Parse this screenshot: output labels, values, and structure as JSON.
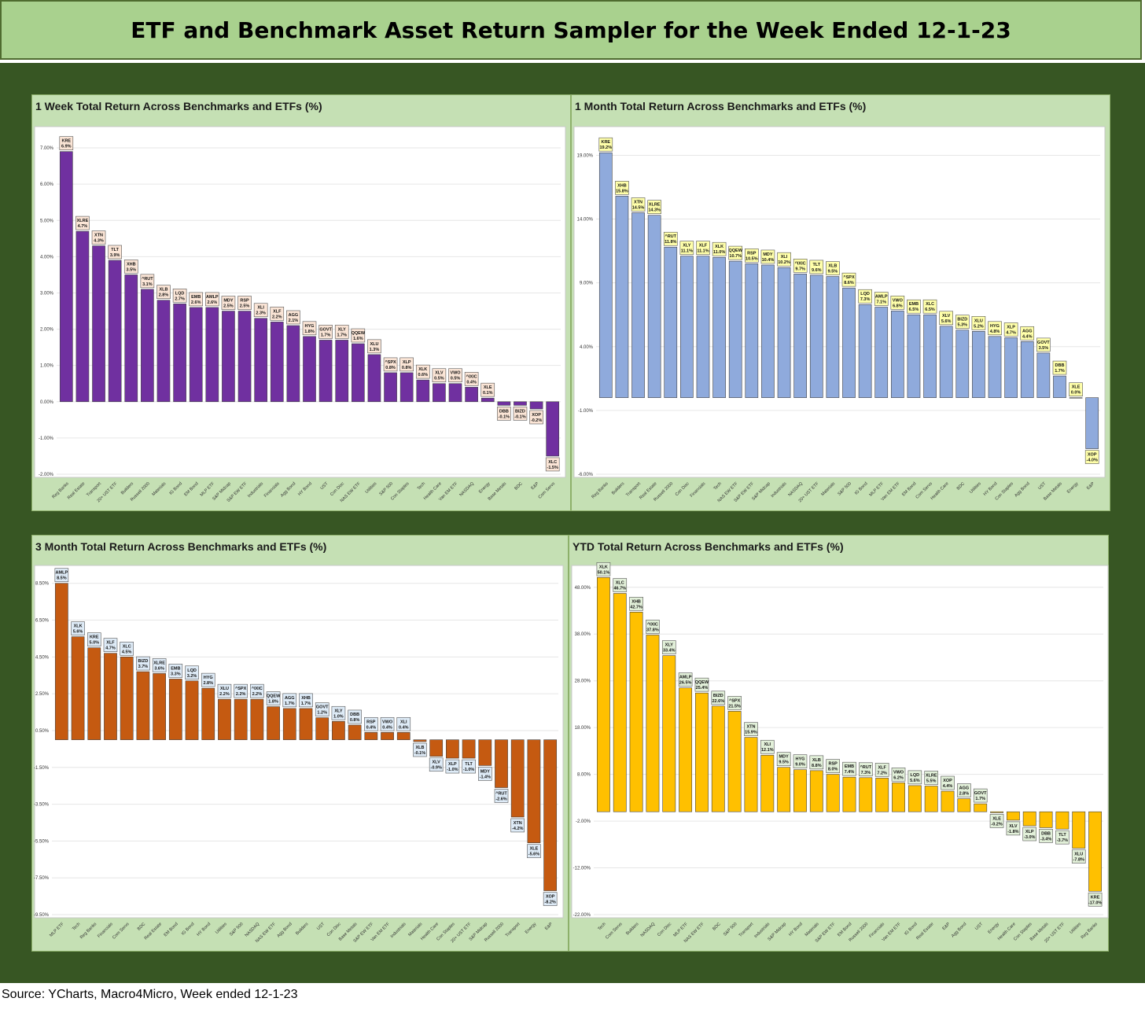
{
  "header": {
    "title": "ETF and Benchmark Asset Return Sampler for the Week Ended 12-1-23"
  },
  "source": "Source: YCharts, Macro4Micro, Week ended 12-1-23",
  "chart_data": [
    {
      "type": "bar",
      "title": "1 Week Total Return Across Benchmarks and ETFs (%)",
      "bar_color": "#7030a0",
      "label_bg": "#fbe5d6",
      "ylim": [
        -2,
        7.5
      ],
      "yticks": [
        -2,
        -1,
        0,
        1,
        2,
        3,
        4,
        5,
        6,
        7
      ],
      "ytick_labels": [
        "-2.00%",
        "-1.00%",
        "0.00%",
        "1.00%",
        "2.00%",
        "3.00%",
        "4.00%",
        "5.00%",
        "6.00%",
        "7.00%"
      ],
      "categories": [
        "Reg Banks",
        "Real Estate",
        "Transport",
        "20+ UST ETF",
        "Builders",
        "Russell 2000",
        "Materials",
        "IG Bond",
        "EM Bond",
        "MLP ETF",
        "S&P Midcap",
        "S&P EW ETF",
        "Industrials",
        "Financials",
        "Agg Bond",
        "HY Bond",
        "UST",
        "Con Disc",
        "NAS EW ETF",
        "Utilities",
        "S&P 500",
        "Con Staples",
        "Tech",
        "Health Care",
        "Van EM ETF",
        "NASDAQ",
        "Energy",
        "Base Metals",
        "BDC",
        "E&P",
        "Com Servs"
      ],
      "tickers": [
        "KRE",
        "XLRE",
        "XTN",
        "TLT",
        "XHB",
        "^RUT",
        "XLB",
        "LQD",
        "EMB",
        "AMLP",
        "MDY",
        "RSP",
        "XLI",
        "XLF",
        "AGG",
        "HYG",
        "GOVT",
        "XLY",
        "QQEW",
        "XLU",
        "^SPX",
        "XLP",
        "XLK",
        "XLV",
        "VWO",
        "^IXIC",
        "XLE",
        "DBB",
        "BIZD",
        "XOP",
        "XLC"
      ],
      "values": [
        6.9,
        4.7,
        4.3,
        3.9,
        3.5,
        3.1,
        2.8,
        2.7,
        2.6,
        2.6,
        2.5,
        2.5,
        2.3,
        2.2,
        2.1,
        1.8,
        1.7,
        1.7,
        1.6,
        1.3,
        0.8,
        0.8,
        0.6,
        0.5,
        0.5,
        0.4,
        0.1,
        -0.1,
        -0.1,
        -0.2,
        -1.5
      ],
      "value_labels": [
        "6.9%",
        "4.7%",
        "4.3%",
        "3.9%",
        "3.5%",
        "3.1%",
        "2.8%",
        "2.7%",
        "2.6%",
        "2.6%",
        "2.5%",
        "2.5%",
        "2.3%",
        "2.2%",
        "2.1%",
        "1.8%",
        "1.7%",
        "1.7%",
        "1.6%",
        "1.3%",
        "0.8%",
        "0.8%",
        "0.6%",
        "0.5%",
        "0.5%",
        "0.4%",
        "0.1%",
        "-0.1%",
        "-0.1%",
        "-0.2%",
        "-1.5%"
      ]
    },
    {
      "type": "bar",
      "title": "1 Month Total Return Across Benchmarks and ETFs (%)",
      "bar_color": "#8faadc",
      "label_bg": "#ffffaa",
      "ylim": [
        -6,
        21
      ],
      "yticks": [
        -6,
        -1,
        4,
        9,
        14,
        19
      ],
      "ytick_labels": [
        "-6.00%",
        "-1.00%",
        "4.00%",
        "9.00%",
        "14.00%",
        "19.00%"
      ],
      "categories": [
        "Reg Banks",
        "Builders",
        "Transport",
        "Real Estate",
        "Russell 2000",
        "Con Disc",
        "Financials",
        "Tech",
        "NAS EW ETF",
        "S&P EW ETF",
        "S&P Midcap",
        "Industrials",
        "NASDAQ",
        "20+ UST ETF",
        "Materials",
        "S&P 500",
        "IG Bond",
        "MLP ETF",
        "Van EM ETF",
        "EM Bond",
        "Com Servs",
        "Health Care",
        "BDC",
        "Utilities",
        "HY Bond",
        "Con Staples",
        "Agg Bond",
        "UST",
        "Base Metals",
        "Energy",
        "E&P"
      ],
      "tickers": [
        "KRE",
        "XHB",
        "XTN",
        "XLRE",
        "^RUT",
        "XLY",
        "XLF",
        "XLK",
        "QQEW",
        "RSP",
        "MDY",
        "XLI",
        "^IXIC",
        "TLT",
        "XLB",
        "^SPX",
        "LQD",
        "AMLP",
        "VWO",
        "EMB",
        "XLC",
        "XLV",
        "BIZD",
        "XLU",
        "HYG",
        "XLP",
        "AGG",
        "GOVT",
        "DBB",
        "XLE",
        "XOP"
      ],
      "values": [
        19.2,
        15.8,
        14.5,
        14.3,
        11.8,
        11.1,
        11.1,
        11.0,
        10.7,
        10.5,
        10.4,
        10.2,
        9.7,
        9.6,
        9.5,
        8.6,
        7.3,
        7.1,
        6.8,
        6.5,
        6.5,
        5.6,
        5.3,
        5.2,
        4.8,
        4.7,
        4.4,
        3.5,
        1.7,
        0.0,
        -4.0
      ],
      "value_labels": [
        "19.2%",
        "15.8%",
        "14.5%",
        "14.3%",
        "11.8%",
        "11.1%",
        "11.1%",
        "11.0%",
        "10.7%",
        "10.5%",
        "10.4%",
        "10.2%",
        "9.7%",
        "9.6%",
        "9.5%",
        "8.6%",
        "7.3%",
        "7.1%",
        "6.8%",
        "6.5%",
        "6.5%",
        "5.6%",
        "5.3%",
        "5.2%",
        "4.8%",
        "4.7%",
        "4.4%",
        "3.5%",
        "1.7%",
        "0.0%",
        "-4.0%"
      ]
    },
    {
      "type": "bar",
      "title": "3 Month Total Return Across Benchmarks and ETFs (%)",
      "bar_color": "#c55a11",
      "label_bg": "#deebf7",
      "ylim": [
        -9.5,
        9.3
      ],
      "yticks": [
        -9.5,
        -7.5,
        -5.5,
        -3.5,
        -1.5,
        0.5,
        2.5,
        4.5,
        6.5,
        8.5
      ],
      "ytick_labels": [
        "-9.50%",
        "-7.50%",
        "-5.50%",
        "-3.50%",
        "-1.50%",
        "0.50%",
        "2.50%",
        "4.50%",
        "6.50%",
        "8.50%"
      ],
      "categories": [
        "MLP ETF",
        "Tech",
        "Reg Banks",
        "Financials",
        "Com Servs",
        "BDC",
        "Real Estate",
        "EM Bond",
        "IG Bond",
        "HY Bond",
        "Utilities",
        "S&P 500",
        "NASDAQ",
        "NAS EW ETF",
        "Agg Bond",
        "Builders",
        "UST",
        "Con Disc",
        "Base Metals",
        "S&P EW ETF",
        "Van EM ETF",
        "Industrials",
        "Materials",
        "Health Care",
        "Con Staples",
        "20+ UST ETF",
        "S&P Midcap",
        "Russell 2000",
        "Transport",
        "Energy",
        "E&P"
      ],
      "tickers": [
        "AMLP",
        "XLK",
        "KRE",
        "XLF",
        "XLC",
        "BIZD",
        "XLRE",
        "EMB",
        "LQD",
        "HYG",
        "XLU",
        "^SPX",
        "^IXIC",
        "QQEW",
        "AGG",
        "XHB",
        "GOVT",
        "XLY",
        "DBB",
        "RSP",
        "VWO",
        "XLI",
        "XLB",
        "XLV",
        "XLP",
        "TLT",
        "MDY",
        "^RUT",
        "XTN",
        "XLE",
        "XOP"
      ],
      "values": [
        8.5,
        5.6,
        5.0,
        4.7,
        4.5,
        3.7,
        3.6,
        3.3,
        3.2,
        2.8,
        2.2,
        2.2,
        2.2,
        1.8,
        1.7,
        1.7,
        1.2,
        1.0,
        0.8,
        0.4,
        0.4,
        0.4,
        -0.1,
        -0.9,
        -1.0,
        -1.0,
        -1.4,
        -2.6,
        -4.2,
        -5.6,
        -8.2
      ],
      "value_labels": [
        "8.5%",
        "5.6%",
        "5.0%",
        "4.7%",
        "4.5%",
        "3.7%",
        "3.6%",
        "3.3%",
        "3.2%",
        "2.8%",
        "2.2%",
        "2.2%",
        "2.2%",
        "1.8%",
        "1.7%",
        "1.7%",
        "1.2%",
        "1.0%",
        "0.8%",
        "0.4%",
        "0.4%",
        "0.4%",
        "-0.1%",
        "-0.9%",
        "-1.0%",
        "-1.0%",
        "-1.4%",
        "-2.6%",
        "-4.2%",
        "-5.6%",
        "-8.2%"
      ]
    },
    {
      "type": "bar",
      "title": "YTD Total Return Across Benchmarks and ETFs (%)",
      "bar_color": "#ffc000",
      "label_bg": "#e2f0d9",
      "ylim": [
        -22,
        52
      ],
      "yticks": [
        -22,
        -12,
        -2,
        8,
        18,
        28,
        38,
        48
      ],
      "ytick_labels": [
        "-22.00%",
        "-12.00%",
        "-2.00%",
        "8.00%",
        "18.00%",
        "28.00%",
        "38.00%",
        "48.00%"
      ],
      "categories": [
        "Tech",
        "Com Servs",
        "Builders",
        "NASDAQ",
        "Con Disc",
        "MLP ETF",
        "NAS EW ETF",
        "BDC",
        "S&P 500",
        "Transport",
        "Industrials",
        "S&P Midcap",
        "HY Bond",
        "Materials",
        "S&P EW ETF",
        "EM Bond",
        "Russell 2000",
        "Financials",
        "Van EM ETF",
        "IG Bond",
        "Real Estate",
        "E&P",
        "Agg Bond",
        "UST",
        "Energy",
        "Health Care",
        "Con Staples",
        "Base Metals",
        "20+ UST ETF",
        "Utilities",
        "Reg Banks"
      ],
      "tickers": [
        "XLK",
        "XLC",
        "XHB",
        "^IXIC",
        "XLY",
        "AMLP",
        "QQEW",
        "BIZD",
        "^SPX",
        "XTN",
        "XLI",
        "MDY",
        "HYG",
        "XLB",
        "RSP",
        "EMB",
        "^RUT",
        "XLF",
        "VWO",
        "LQD",
        "XLRE",
        "XOP",
        "AGG",
        "GOVT",
        "XLE",
        "XLV",
        "XLP",
        "DBB",
        "TLT",
        "XLU",
        "KRE"
      ],
      "values": [
        50.1,
        46.7,
        42.7,
        37.8,
        33.4,
        26.5,
        25.4,
        22.6,
        21.5,
        15.9,
        12.1,
        9.5,
        9.0,
        8.8,
        8.0,
        7.4,
        7.3,
        7.2,
        6.2,
        5.6,
        5.5,
        4.4,
        2.8,
        1.7,
        -0.2,
        -1.8,
        -3.0,
        -3.4,
        -3.7,
        -7.8,
        -17.0
      ],
      "value_labels": [
        "50.1%",
        "46.7%",
        "42.7%",
        "37.8%",
        "33.4%",
        "26.5%",
        "25.4%",
        "22.6%",
        "21.5%",
        "15.9%",
        "12.1%",
        "9.5%",
        "9.0%",
        "8.8%",
        "8.0%",
        "7.4%",
        "7.3%",
        "7.2%",
        "6.2%",
        "5.6%",
        "5.5%",
        "4.4%",
        "2.8%",
        "1.7%",
        "-0.2%",
        "-1.8%",
        "-3.0%",
        "-3.4%",
        "-3.7%",
        "-7.8%",
        "-17.0%"
      ]
    }
  ]
}
